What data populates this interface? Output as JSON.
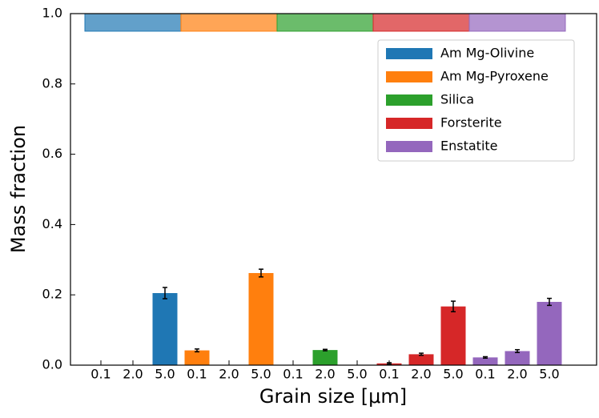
{
  "chart_data": {
    "type": "bar",
    "xlabel": "Grain size [μm]",
    "ylabel": "Mass fraction",
    "ylim": [
      0,
      1
    ],
    "yticks": [
      {
        "value": 0,
        "label": "0.0"
      },
      0.2,
      0.4,
      0.6,
      0.8,
      {
        "value": 1,
        "label": "1.0"
      }
    ],
    "legend": "upper right",
    "series": [
      {
        "name": "Am Mg-Olivine",
        "color": "#1f77b4",
        "categories": [
          "0.1",
          "2.0",
          "5.0"
        ],
        "values": [
          0,
          0,
          0.205
        ],
        "errors": [
          0,
          0,
          0.016
        ]
      },
      {
        "name": "Am Mg-Pyroxene",
        "color": "#ff7f0e",
        "categories": [
          "0.1",
          "2.0",
          "5.0"
        ],
        "values": [
          0.042,
          0,
          0.262
        ],
        "errors": [
          0.004,
          0,
          0.011
        ]
      },
      {
        "name": "Silica",
        "color": "#2ca02c",
        "categories": [
          "0.1",
          "2.0",
          "5.0"
        ],
        "values": [
          0,
          0.043,
          0
        ],
        "errors": [
          0,
          0.002,
          0
        ]
      },
      {
        "name": "Forsterite",
        "color": "#d62728",
        "categories": [
          "0.1",
          "2.0",
          "5.0"
        ],
        "values": [
          0.005,
          0.031,
          0.167
        ],
        "errors": [
          0.002,
          0.003,
          0.015
        ]
      },
      {
        "name": "Enstatite",
        "color": "#9467bd",
        "categories": [
          "0.1",
          "2.0",
          "5.0"
        ],
        "values": [
          0.022,
          0.04,
          0.18
        ],
        "errors": [
          0.002,
          0.004,
          0.01
        ]
      }
    ]
  }
}
